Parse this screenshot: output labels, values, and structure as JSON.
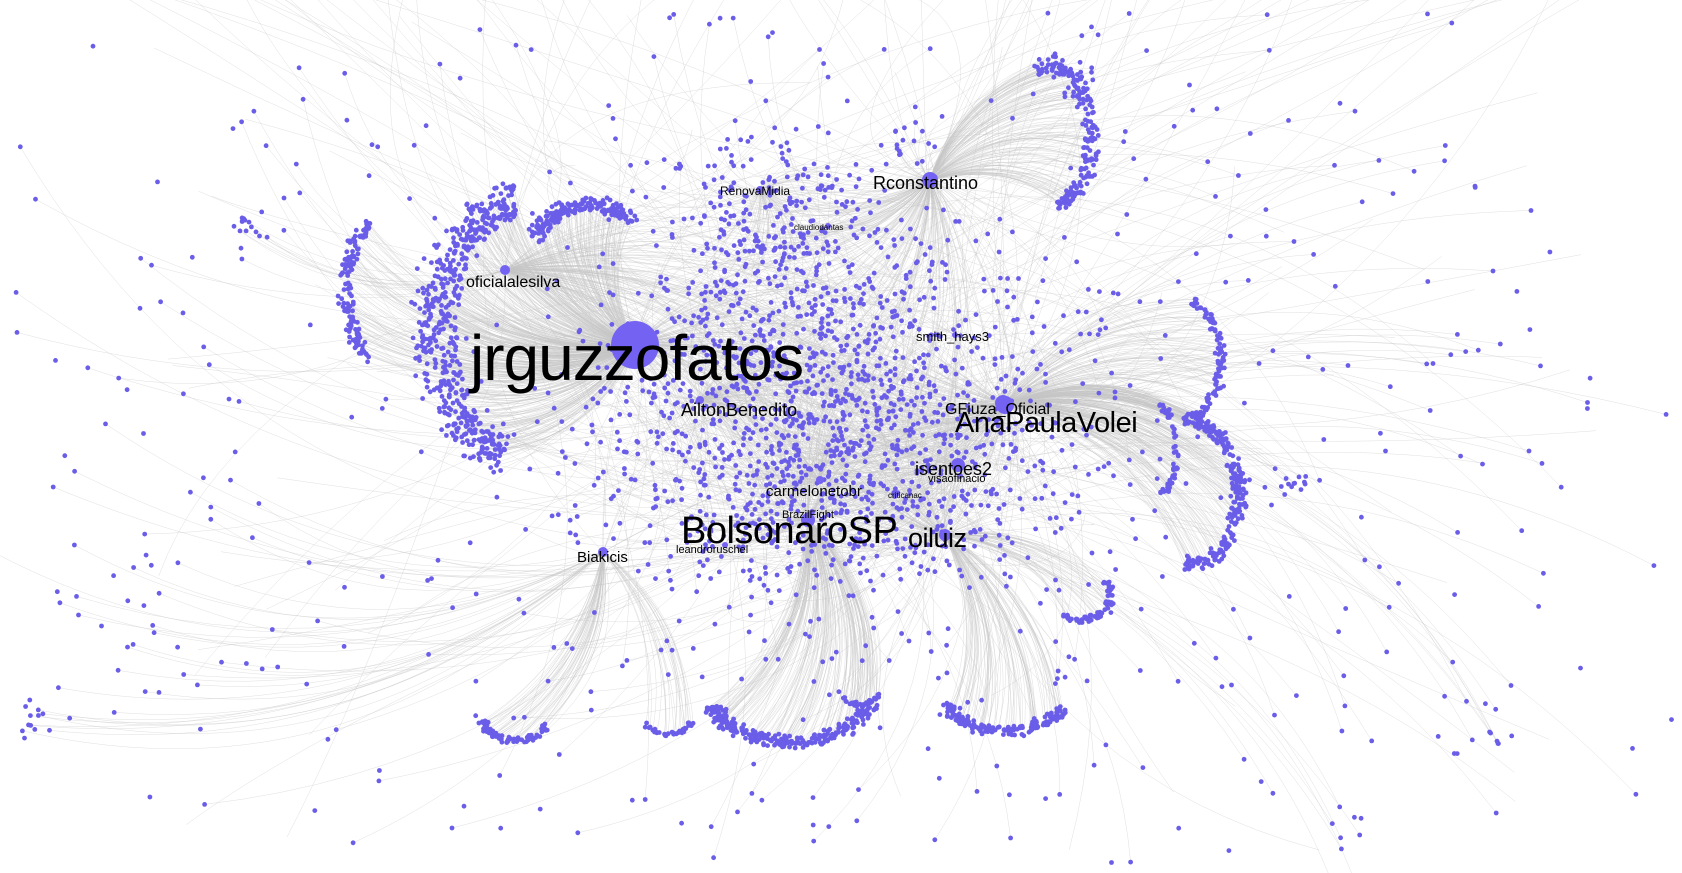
{
  "graph": {
    "node_color": "#6a5de8",
    "hub_color": "#7463f2",
    "edge_color": "#c4c4c4",
    "background": "#ffffff",
    "labels": [
      {
        "id": "jrguzzofatos",
        "text": "jrguzzofatos"
      },
      {
        "id": "BolsonaroSP",
        "text": "BolsonaroSP"
      },
      {
        "id": "AnaPaulaVolei",
        "text": "AnaPaulaVolei"
      },
      {
        "id": "oiluiz",
        "text": "oiluiz"
      },
      {
        "id": "Rconstantino",
        "text": "Rconstantino"
      },
      {
        "id": "AiltonBenedito",
        "text": "AiltonBenedito"
      },
      {
        "id": "oficialalesilva",
        "text": "oficialalesilva"
      },
      {
        "id": "GFiuza_Oficial",
        "text": "GFiuza_Oficial"
      },
      {
        "id": "isentoes2",
        "text": "isentoes2"
      },
      {
        "id": "carmelonetobr",
        "text": "carmelonetobr"
      },
      {
        "id": "Biakicis",
        "text": "Biakicis"
      },
      {
        "id": "smith_hays3",
        "text": "smith_hays3"
      },
      {
        "id": "RenovaMidia",
        "text": "RenovaMidia"
      },
      {
        "id": "leandroruschel",
        "text": "leandroruschel"
      },
      {
        "id": "BrazilFight",
        "text": "BrazilFight"
      },
      {
        "id": "visaofinacio",
        "text": "visaofinacio"
      },
      {
        "id": "claudiodantas",
        "text": "claudiodantas"
      },
      {
        "id": "criticanac",
        "text": "criticanac"
      }
    ]
  }
}
